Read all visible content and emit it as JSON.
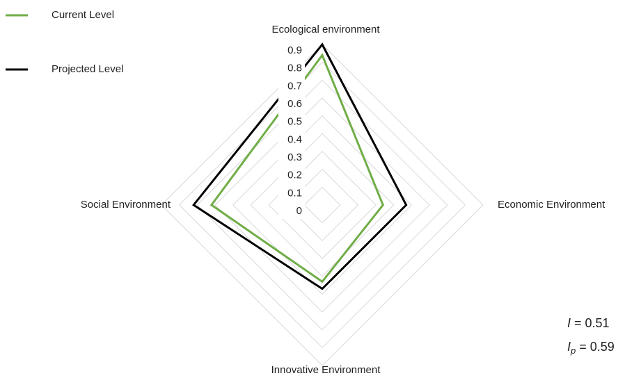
{
  "chart_data": {
    "type": "radar",
    "categories": [
      "Ecological environment",
      "Economic Environment",
      "Innovative Environment",
      "Social Environment"
    ],
    "series": [
      {
        "name": "Current Level",
        "color": "#70ad47",
        "values": [
          0.84,
          0.34,
          0.43,
          0.62
        ]
      },
      {
        "name": "Projected Level",
        "color": "#000000",
        "values": [
          0.9,
          0.47,
          0.47,
          0.72
        ]
      }
    ],
    "ylim": [
      0,
      0.9
    ],
    "yticks": [
      0,
      0.1,
      0.2,
      0.3,
      0.4,
      0.5,
      0.6,
      0.7,
      0.8,
      0.9
    ],
    "grid": true,
    "legend": "top-left",
    "annotations": [
      {
        "symbol": "I",
        "text": " = 0.51"
      },
      {
        "symbol": "I",
        "subscript": "p",
        "text": " = 0.59"
      }
    ]
  }
}
